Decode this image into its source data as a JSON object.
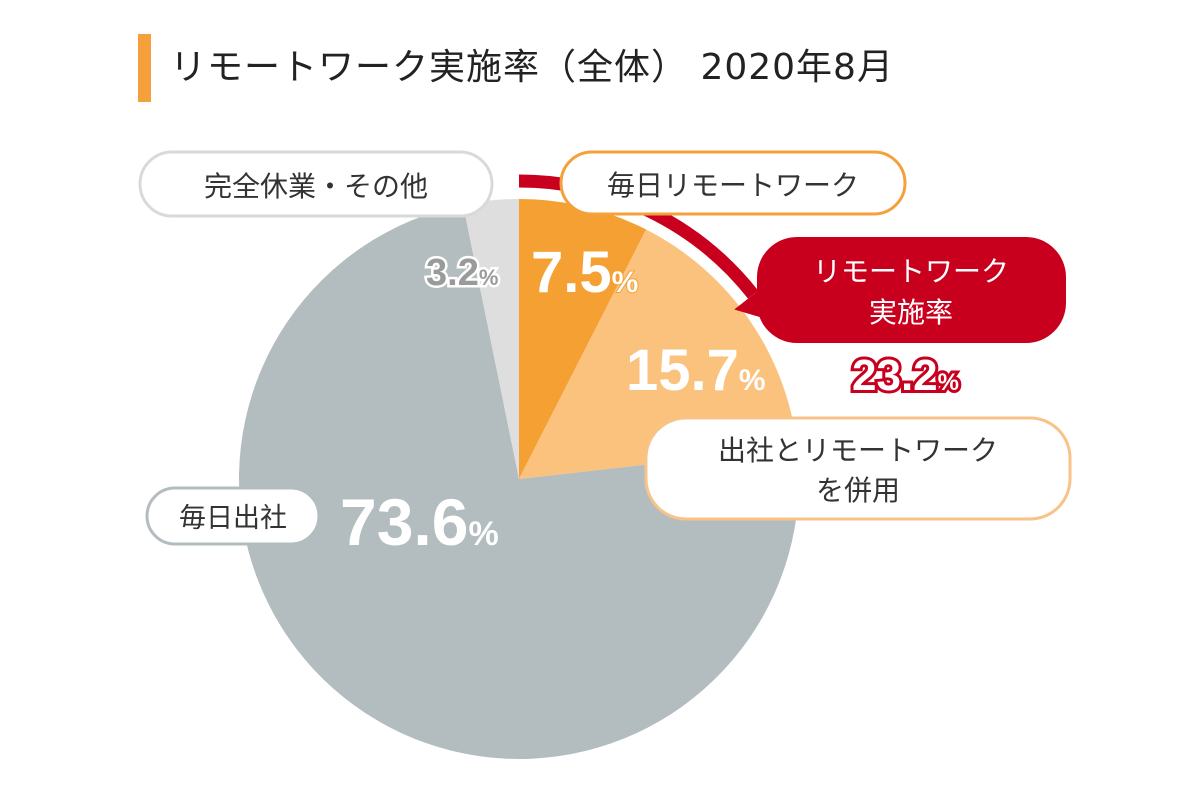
{
  "title": "リモートワーク実施率（全体） 2020年8月",
  "colors": {
    "accent": "#f5a03a",
    "daily_remote": "#f5a033",
    "mixed": "#fbc27e",
    "office": "#b3bdbf",
    "other": "#dedede",
    "red": "#c8001e"
  },
  "chart_data": {
    "type": "pie",
    "slices": [
      {
        "label": "毎日リモートワーク",
        "value": 7.5,
        "value_label": "7.5",
        "unit": "%"
      },
      {
        "label": "出社とリモートワークを併用",
        "label_lines": [
          "出社とリモートワーク",
          "を併用"
        ],
        "value": 15.7,
        "value_label": "15.7",
        "unit": "%"
      },
      {
        "label": "毎日出社",
        "value": 73.6,
        "value_label": "73.6",
        "unit": "%"
      },
      {
        "label": "完全休業・その他",
        "value": 3.2,
        "value_label": "3.2",
        "unit": "%"
      }
    ],
    "annotation": {
      "label_lines": [
        "リモートワーク",
        "実施率"
      ],
      "value_label": "23.2",
      "unit": "%"
    }
  }
}
